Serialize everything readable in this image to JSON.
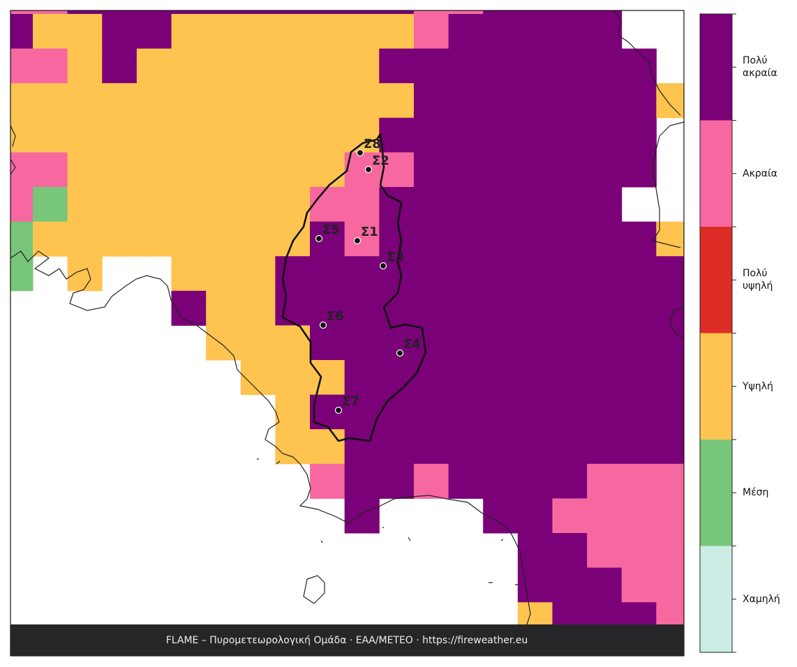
{
  "map": {
    "levels": [
      {
        "label": "Πολύ ακραία",
        "color": "#7a0177"
      },
      {
        "label": "Ακραία",
        "color": "#f768a1"
      },
      {
        "label": "Πολύ υψηλή",
        "color": "#de2d26"
      },
      {
        "label": "Υψηλή",
        "color": "#fec44f"
      },
      {
        "label": "Μέση",
        "color": "#78c679"
      },
      {
        "label": "Χαμηλή",
        "color": "#ccece6"
      }
    ],
    "stations": [
      {
        "label": "Σ8"
      },
      {
        "label": "Σ2"
      },
      {
        "label": "Σ5"
      },
      {
        "label": "Σ1"
      },
      {
        "label": "Σ3"
      },
      {
        "label": "Σ6"
      },
      {
        "label": "Σ4"
      },
      {
        "label": "Σ7"
      }
    ],
    "footer": "FLAME – Πυρομετεωρολογική Ομάδα · ΕΑΑ/METEO · https://fireweather.eu"
  }
}
